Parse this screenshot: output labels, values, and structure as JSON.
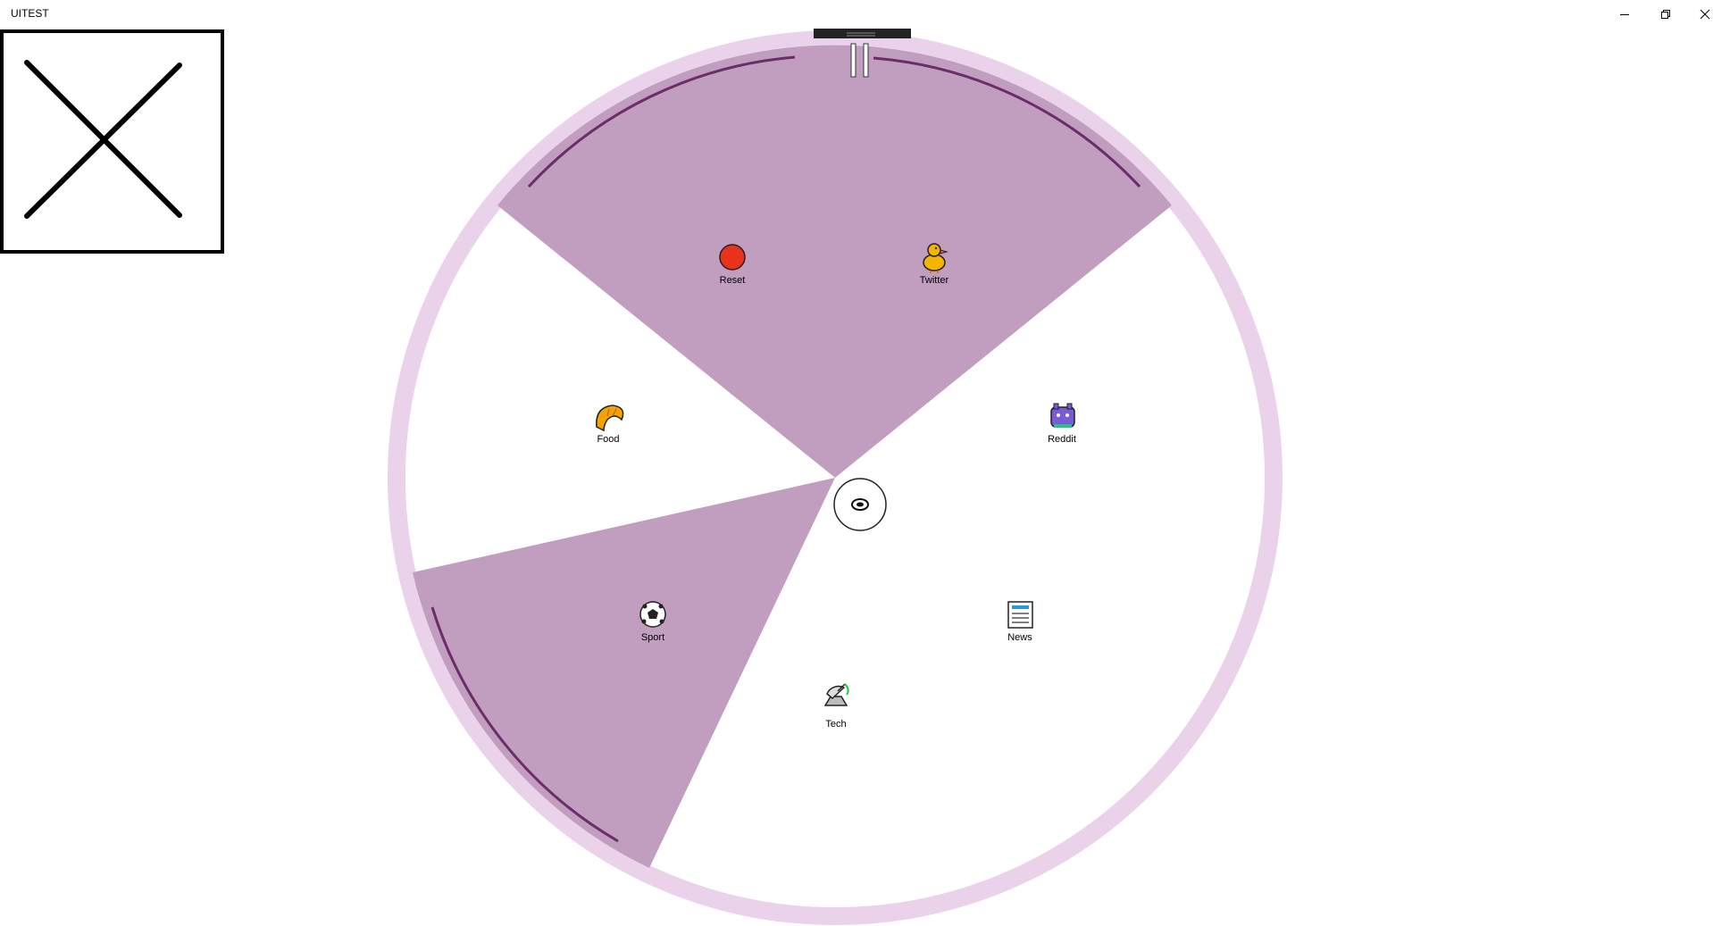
{
  "window": {
    "title": "UITEST",
    "minimize_icon": "minimize-icon",
    "restore_icon": "restore-icon",
    "close_icon": "close-icon"
  },
  "image_placeholder": {
    "icon": "broken-image-icon"
  },
  "radial_menu": {
    "colors": {
      "outer_ring": "#ead3ea",
      "selected_sector": "#c19dc0",
      "accent_arc": "#6b2d6a",
      "handle": "#222222",
      "background": "#ffffff"
    },
    "center_button": {
      "icon": "hub-icon"
    },
    "top_handle": {
      "icon": "drag-handle-icon"
    },
    "pause": {
      "icon": "pause-icon"
    },
    "items": [
      {
        "key": "reset",
        "label": "Reset",
        "icon": "red-circle-icon",
        "selected": true
      },
      {
        "key": "twitter",
        "label": "Twitter",
        "icon": "chick-icon",
        "selected": true
      },
      {
        "key": "reddit",
        "label": "Reddit",
        "icon": "alien-monster-icon",
        "selected": false
      },
      {
        "key": "news",
        "label": "News",
        "icon": "newspaper-icon",
        "selected": false
      },
      {
        "key": "tech",
        "label": "Tech",
        "icon": "satellite-dish-icon",
        "selected": false
      },
      {
        "key": "sport",
        "label": "Sport",
        "icon": "soccer-ball-icon",
        "selected": true
      },
      {
        "key": "food",
        "label": "Food",
        "icon": "croissant-icon",
        "selected": false
      }
    ]
  }
}
